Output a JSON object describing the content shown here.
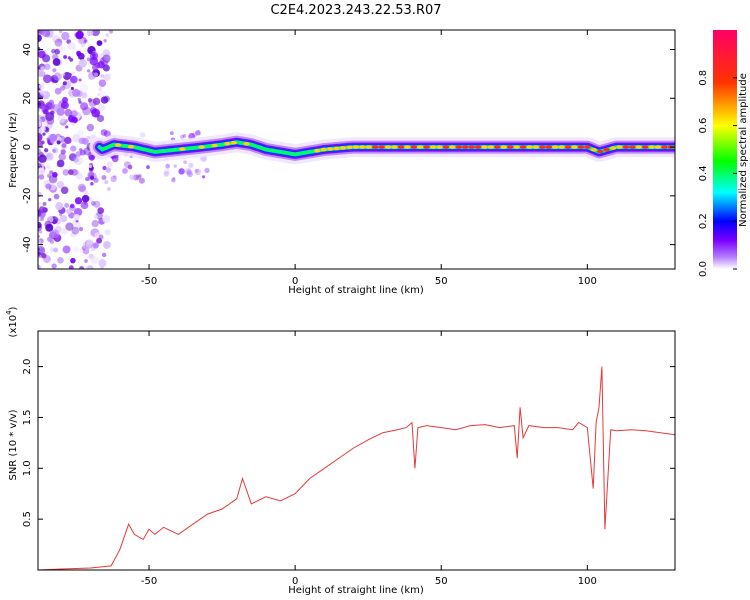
{
  "title": "C2E4.2023.243.22.53.R07",
  "chart_data": [
    {
      "type": "heatmap",
      "xlabel": "Height of straight line (km)",
      "ylabel": "Frequency (Hz)",
      "xlim": [
        -88,
        130
      ],
      "ylim": [
        -50,
        48
      ],
      "x_ticks": [
        "-50",
        "0",
        "50",
        "100"
      ],
      "y_ticks": [
        "-40",
        "-20",
        "0",
        "20",
        "40"
      ],
      "colorbar": {
        "label": "Normalized spectral amplitude",
        "range": [
          0,
          1
        ],
        "ticks": [
          "0.0",
          "0.2",
          "0.4",
          "0.6",
          "0.8"
        ],
        "colors": [
          "#ffffff",
          "#7a00ff",
          "#0000ff",
          "#00ffff",
          "#00ff00",
          "#ffff00",
          "#ff0000",
          "#ff0066"
        ]
      },
      "ridge": [
        {
          "x": -66,
          "y": -1
        },
        {
          "x": -62,
          "y": 1
        },
        {
          "x": -55,
          "y": 0
        },
        {
          "x": -48,
          "y": -2
        },
        {
          "x": -40,
          "y": -1
        },
        {
          "x": -32,
          "y": 0
        },
        {
          "x": -25,
          "y": 1
        },
        {
          "x": -20,
          "y": 2
        },
        {
          "x": -15,
          "y": 1
        },
        {
          "x": -10,
          "y": -1
        },
        {
          "x": -5,
          "y": -2
        },
        {
          "x": 0,
          "y": -3
        },
        {
          "x": 5,
          "y": -2
        },
        {
          "x": 10,
          "y": -1
        },
        {
          "x": 20,
          "y": 0
        },
        {
          "x": 60,
          "y": 0
        },
        {
          "x": 100,
          "y": 0
        },
        {
          "x": 104,
          "y": -2
        },
        {
          "x": 110,
          "y": 0
        },
        {
          "x": 130,
          "y": 0
        }
      ]
    },
    {
      "type": "line",
      "xlabel": "Height of straight line (km)",
      "ylabel": "SNR (10 * v/v)",
      "y_multiplier": "(x10",
      "y_multiplier_exp": "4",
      "y_multiplier_close": ")",
      "xlim": [
        -88,
        130
      ],
      "ylim": [
        0,
        2.35
      ],
      "x_ticks": [
        "-50",
        "0",
        "50",
        "100"
      ],
      "y_ticks": [
        "0.5",
        "1.0",
        "1.5",
        "2.0"
      ],
      "color": "#e8383a",
      "x": [
        -88,
        -80,
        -70,
        -63,
        -60,
        -57,
        -55,
        -52,
        -50,
        -48,
        -45,
        -40,
        -35,
        -30,
        -25,
        -20,
        -18,
        -15,
        -10,
        -5,
        0,
        5,
        10,
        15,
        20,
        25,
        30,
        35,
        38,
        40,
        41,
        42,
        45,
        50,
        55,
        60,
        65,
        70,
        75,
        76,
        77,
        78,
        80,
        85,
        90,
        95,
        97,
        100,
        102,
        103,
        104,
        105,
        106,
        108,
        110,
        115,
        120,
        125,
        130
      ],
      "y": [
        0.0,
        0.01,
        0.02,
        0.04,
        0.2,
        0.45,
        0.35,
        0.3,
        0.4,
        0.35,
        0.42,
        0.35,
        0.45,
        0.55,
        0.6,
        0.7,
        0.9,
        0.65,
        0.72,
        0.68,
        0.75,
        0.9,
        1.0,
        1.1,
        1.2,
        1.28,
        1.35,
        1.38,
        1.4,
        1.45,
        1.0,
        1.4,
        1.42,
        1.4,
        1.38,
        1.42,
        1.43,
        1.4,
        1.42,
        1.1,
        1.6,
        1.3,
        1.42,
        1.4,
        1.4,
        1.38,
        1.45,
        1.4,
        0.8,
        1.45,
        1.6,
        2.0,
        0.4,
        1.38,
        1.37,
        1.38,
        1.37,
        1.35,
        1.33
      ]
    }
  ]
}
